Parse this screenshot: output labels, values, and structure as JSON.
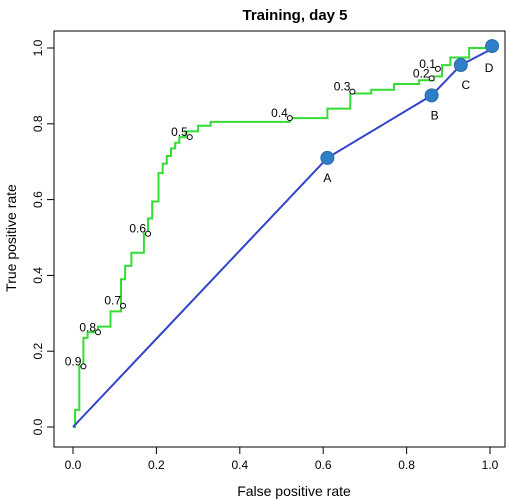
{
  "chart_data": {
    "type": "line",
    "title": "Training, day 5",
    "xlabel": "False positive rate",
    "ylabel": "True positive rate",
    "xlim": [
      0,
      1
    ],
    "ylim": [
      0,
      1
    ],
    "x_ticks": [
      "0.0",
      "0.2",
      "0.4",
      "0.6",
      "0.8",
      "1.0"
    ],
    "y_ticks": [
      "0.0",
      "0.2",
      "0.4",
      "0.6",
      "0.8",
      "1.0"
    ],
    "grid": false,
    "series": [
      {
        "color": "#33dd33",
        "step": true,
        "x": [
          0,
          0.005,
          0.005,
          0.015,
          0.015,
          0.025,
          0.025,
          0.035,
          0.035,
          0.06,
          0.06,
          0.09,
          0.09,
          0.115,
          0.115,
          0.125,
          0.125,
          0.14,
          0.14,
          0.17,
          0.17,
          0.18,
          0.18,
          0.19,
          0.19,
          0.205,
          0.205,
          0.215,
          0.215,
          0.225,
          0.225,
          0.235,
          0.235,
          0.245,
          0.245,
          0.255,
          0.255,
          0.27,
          0.27,
          0.3,
          0.3,
          0.33,
          0.33,
          0.52,
          0.52,
          0.61,
          0.61,
          0.665,
          0.665,
          0.715,
          0.715,
          0.77,
          0.77,
          0.83,
          0.83,
          0.865,
          0.865,
          0.885,
          0.885,
          0.905,
          0.905,
          0.95,
          0.95,
          1.0
        ],
        "y": [
          0,
          0,
          0.045,
          0.045,
          0.16,
          0.16,
          0.235,
          0.235,
          0.25,
          0.25,
          0.265,
          0.265,
          0.305,
          0.305,
          0.39,
          0.39,
          0.425,
          0.425,
          0.46,
          0.46,
          0.51,
          0.51,
          0.55,
          0.55,
          0.595,
          0.595,
          0.67,
          0.67,
          0.695,
          0.695,
          0.715,
          0.715,
          0.735,
          0.735,
          0.75,
          0.75,
          0.765,
          0.765,
          0.78,
          0.78,
          0.795,
          0.795,
          0.805,
          0.805,
          0.815,
          0.815,
          0.84,
          0.84,
          0.88,
          0.88,
          0.89,
          0.89,
          0.905,
          0.905,
          0.915,
          0.915,
          0.925,
          0.925,
          0.955,
          0.955,
          0.975,
          0.975,
          1.0,
          1.0
        ]
      },
      {
        "color": "#3344cc",
        "x": [
          0,
          0.61,
          0.86,
          0.93,
          1.0
        ],
        "y": [
          0,
          0.71,
          0.875,
          0.955,
          0.995
        ]
      }
    ],
    "threshold_labels": [
      {
        "text": "0.9",
        "x": 0.025,
        "y": 0.16
      },
      {
        "text": "0.8",
        "x": 0.06,
        "y": 0.25
      },
      {
        "text": "0.7",
        "x": 0.12,
        "y": 0.32
      },
      {
        "text": "0.6",
        "x": 0.18,
        "y": 0.51
      },
      {
        "text": "0.5",
        "x": 0.28,
        "y": 0.765
      },
      {
        "text": "0.4",
        "x": 0.52,
        "y": 0.815
      },
      {
        "text": "0.3",
        "x": 0.67,
        "y": 0.885
      },
      {
        "text": "0.2",
        "x": 0.86,
        "y": 0.92
      },
      {
        "text": "0.1",
        "x": 0.875,
        "y": 0.945
      }
    ],
    "points": [
      {
        "label": "A",
        "x": 0.61,
        "y": 0.71
      },
      {
        "label": "B",
        "x": 0.86,
        "y": 0.875
      },
      {
        "label": "C",
        "x": 0.93,
        "y": 0.955
      },
      {
        "label": "D",
        "x": 1.005,
        "y": 1.005
      }
    ],
    "colors": {
      "roc_curve": "#33dd33",
      "diagonal_line": "#3344cc",
      "points": "#2f7fc8"
    }
  }
}
